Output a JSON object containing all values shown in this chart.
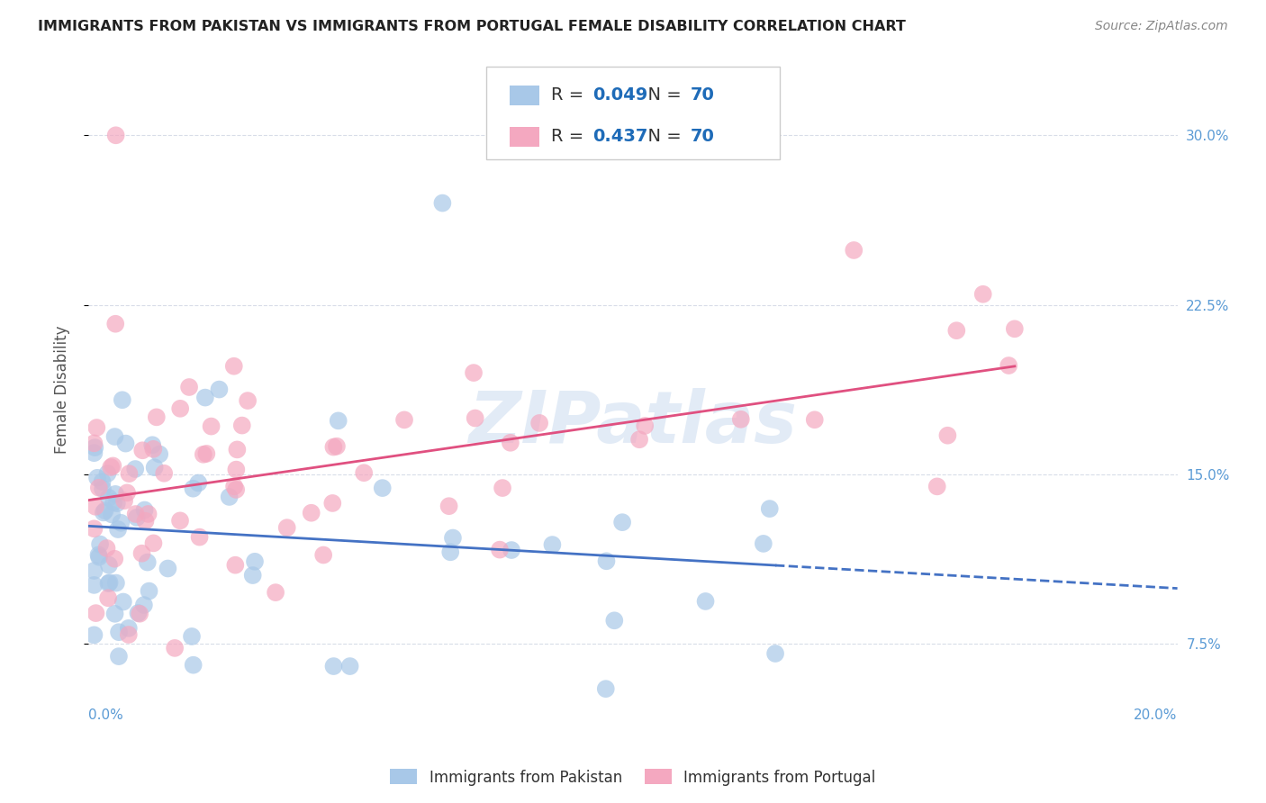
{
  "title": "IMMIGRANTS FROM PAKISTAN VS IMMIGRANTS FROM PORTUGAL FEMALE DISABILITY CORRELATION CHART",
  "source": "Source: ZipAtlas.com",
  "ylabel": "Female Disability",
  "legend_label1": "Immigrants from Pakistan",
  "legend_label2": "Immigrants from Portugal",
  "R1": "0.049",
  "N1": "70",
  "R2": "0.437",
  "N2": "70",
  "color_pakistan": "#a8c8e8",
  "color_portugal": "#f4a8c0",
  "line_color_pakistan": "#4472c4",
  "line_color_portugal": "#e05080",
  "watermark": "ZIPatlas",
  "xlim": [
    0.0,
    0.2
  ],
  "ylim": [
    0.04,
    0.335
  ],
  "ytick_vals": [
    0.075,
    0.15,
    0.225,
    0.3
  ],
  "ytick_labels": [
    "7.5%",
    "15.0%",
    "22.5%",
    "30.0%"
  ],
  "grid_color": "#d8dde8",
  "title_color": "#222222",
  "source_color": "#888888",
  "right_tick_color": "#5b9bd5"
}
